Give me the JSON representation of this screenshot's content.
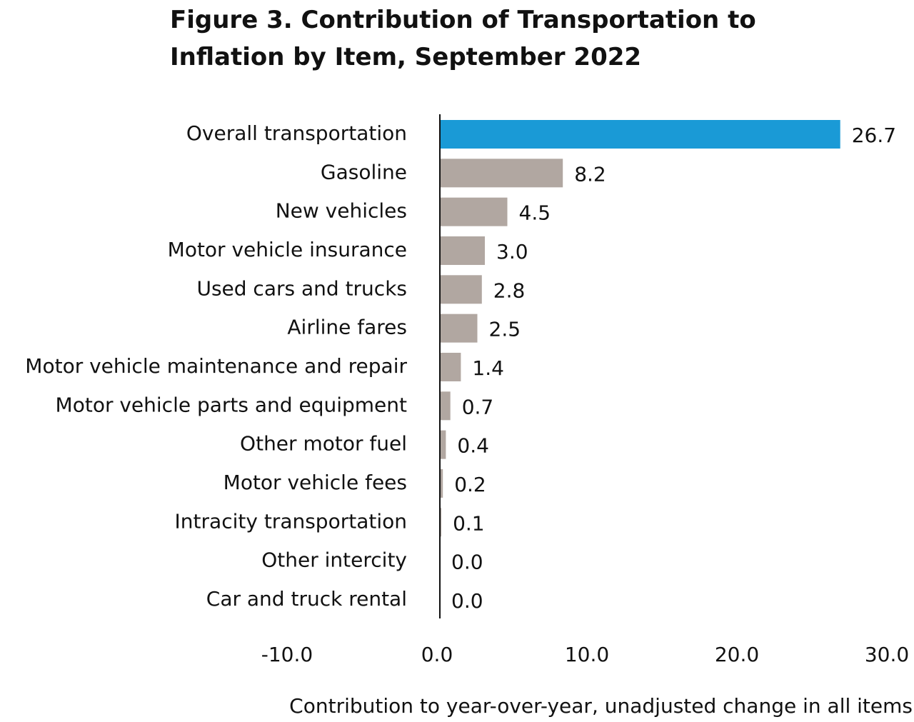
{
  "chart_data": {
    "type": "hbar",
    "title": "Figure 3. Contribution of Transportation to Inflation by Item, September 2022",
    "x_label": "Contribution to year-over-year, unadjusted change in all items",
    "categories": [
      "Overall transportation",
      "Gasoline",
      "New vehicles",
      "Motor vehicle insurance",
      "Used cars and trucks",
      "Airline fares",
      "Motor vehicle maintenance and repair",
      "Motor vehicle parts and equipment",
      "Other motor fuel",
      "Motor vehicle fees",
      "Intracity transportation",
      "Other intercity",
      "Car and truck rental"
    ],
    "values": [
      26.7,
      8.2,
      4.5,
      3.0,
      2.8,
      2.5,
      1.4,
      0.7,
      0.4,
      0.2,
      0.1,
      0.0,
      0.0
    ],
    "value_labels": [
      "26.7",
      "8.2",
      "4.5",
      "3.0",
      "2.8",
      "2.5",
      "1.4",
      "0.7",
      "0.4",
      "0.2",
      "0.1",
      "0.0",
      "0.0"
    ],
    "colors": [
      "#1a9ad6",
      "#b1a7a1",
      "#b1a7a1",
      "#b1a7a1",
      "#b1a7a1",
      "#b1a7a1",
      "#b1a7a1",
      "#b1a7a1",
      "#b1a7a1",
      "#b1a7a1",
      "#b1a7a1",
      "#b1a7a1",
      "#b1a7a1"
    ],
    "xlim": [
      -10,
      30
    ],
    "xticks": [
      {
        "value": -10,
        "label": "-10.0"
      },
      {
        "value": 0,
        "label": "0.0"
      },
      {
        "value": 10,
        "label": "10.0"
      },
      {
        "value": 20,
        "label": "20.0"
      },
      {
        "value": 30,
        "label": "30.0"
      }
    ],
    "grid": false
  }
}
